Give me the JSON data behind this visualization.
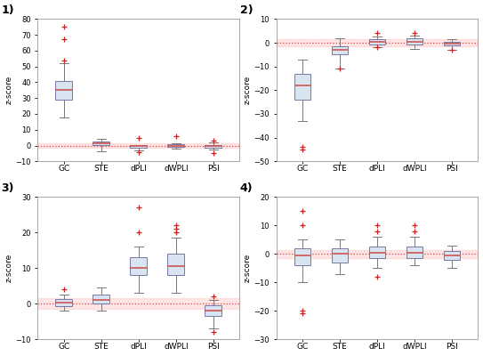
{
  "categories": [
    "GC",
    "STE",
    "dPLI",
    "dWPLI",
    "PSI"
  ],
  "ylabel": "z-score",
  "shading_color": "#ffb6b6",
  "shading_alpha": 0.35,
  "dotted_line_color": "#dd4444",
  "box_facecolor": "#d8e4f0",
  "box_edgecolor": "#7777aa",
  "whisker_color": "#777777",
  "cap_color": "#777777",
  "flier_color": "#cc2222",
  "median_color": "#cc5555",
  "shading_ylo": -1.5,
  "shading_yhi": 1.5,
  "plots": [
    {
      "title": "1)",
      "ylim": [
        -10,
        80
      ],
      "yticks": [
        -10,
        0,
        10,
        20,
        30,
        40,
        50,
        60,
        70,
        80
      ],
      "boxes": [
        {
          "q1": 29,
          "median": 35,
          "q3": 41,
          "whislo": 18,
          "whishi": 52,
          "fliers": [
            54,
            67,
            75
          ]
        },
        {
          "q1": 0.5,
          "median": 1.5,
          "q3": 2.8,
          "whislo": -3.5,
          "whishi": 4.5,
          "fliers": []
        },
        {
          "q1": -1.5,
          "median": -0.5,
          "q3": 0.5,
          "whislo": -3,
          "whishi": 0.5,
          "fliers": [
            5,
            -4
          ]
        },
        {
          "q1": -1,
          "median": 0,
          "q3": 0.8,
          "whislo": -2,
          "whishi": 1.5,
          "fliers": [
            6
          ]
        },
        {
          "q1": -1.5,
          "median": -0.5,
          "q3": 0.5,
          "whislo": -2.5,
          "whishi": 2,
          "fliers": [
            3,
            -5
          ]
        }
      ]
    },
    {
      "title": "2)",
      "ylim": [
        -50,
        10
      ],
      "yticks": [
        -50,
        -40,
        -30,
        -20,
        -10,
        0,
        10
      ],
      "boxes": [
        {
          "q1": -24,
          "median": -18,
          "q3": -13,
          "whislo": -33,
          "whishi": -7,
          "fliers": [
            -44,
            -45
          ]
        },
        {
          "q1": -5,
          "median": -3,
          "q3": -1.5,
          "whislo": -11,
          "whishi": 2,
          "fliers": [
            -11
          ]
        },
        {
          "q1": -0.8,
          "median": 0.5,
          "q3": 1.5,
          "whislo": -2,
          "whishi": 2.5,
          "fliers": [
            4,
            -2
          ]
        },
        {
          "q1": -0.8,
          "median": 0.5,
          "q3": 1.8,
          "whislo": -2.5,
          "whishi": 3,
          "fliers": [
            4
          ]
        },
        {
          "q1": -1,
          "median": -0.3,
          "q3": 0.3,
          "whislo": -3,
          "whishi": 1.5,
          "fliers": [
            -3
          ]
        }
      ]
    },
    {
      "title": "3)",
      "ylim": [
        -10,
        30
      ],
      "yticks": [
        -10,
        0,
        10,
        20,
        30
      ],
      "boxes": [
        {
          "q1": -0.8,
          "median": 0.3,
          "q3": 1.2,
          "whislo": -2,
          "whishi": 2.5,
          "fliers": [
            4
          ]
        },
        {
          "q1": 0,
          "median": 1,
          "q3": 2.5,
          "whislo": -2,
          "whishi": 4.5,
          "fliers": []
        },
        {
          "q1": 8,
          "median": 10,
          "q3": 13,
          "whislo": 3,
          "whishi": 16,
          "fliers": [
            20,
            27
          ]
        },
        {
          "q1": 8,
          "median": 10.5,
          "q3": 14,
          "whislo": 3,
          "whishi": 18.5,
          "fliers": [
            21,
            22,
            20
          ]
        },
        {
          "q1": -3.5,
          "median": -2,
          "q3": -0.5,
          "whislo": -7,
          "whishi": 1,
          "fliers": [
            -8,
            2
          ]
        }
      ]
    },
    {
      "title": "4)",
      "ylim": [
        -30,
        20
      ],
      "yticks": [
        -30,
        -20,
        -10,
        0,
        10,
        20
      ],
      "boxes": [
        {
          "q1": -4,
          "median": -0.5,
          "q3": 2,
          "whislo": -10,
          "whishi": 5,
          "fliers": [
            -21,
            15,
            10,
            -20
          ]
        },
        {
          "q1": -3,
          "median": 0,
          "q3": 2,
          "whislo": -7,
          "whishi": 5,
          "fliers": []
        },
        {
          "q1": -1.5,
          "median": 0.5,
          "q3": 2.5,
          "whislo": -5,
          "whishi": 6,
          "fliers": [
            8,
            10,
            -8
          ]
        },
        {
          "q1": -1.5,
          "median": 0.5,
          "q3": 2.5,
          "whislo": -4,
          "whishi": 6,
          "fliers": [
            8,
            10
          ]
        },
        {
          "q1": -2,
          "median": -0.5,
          "q3": 1,
          "whislo": -5,
          "whishi": 3,
          "fliers": []
        }
      ]
    }
  ]
}
